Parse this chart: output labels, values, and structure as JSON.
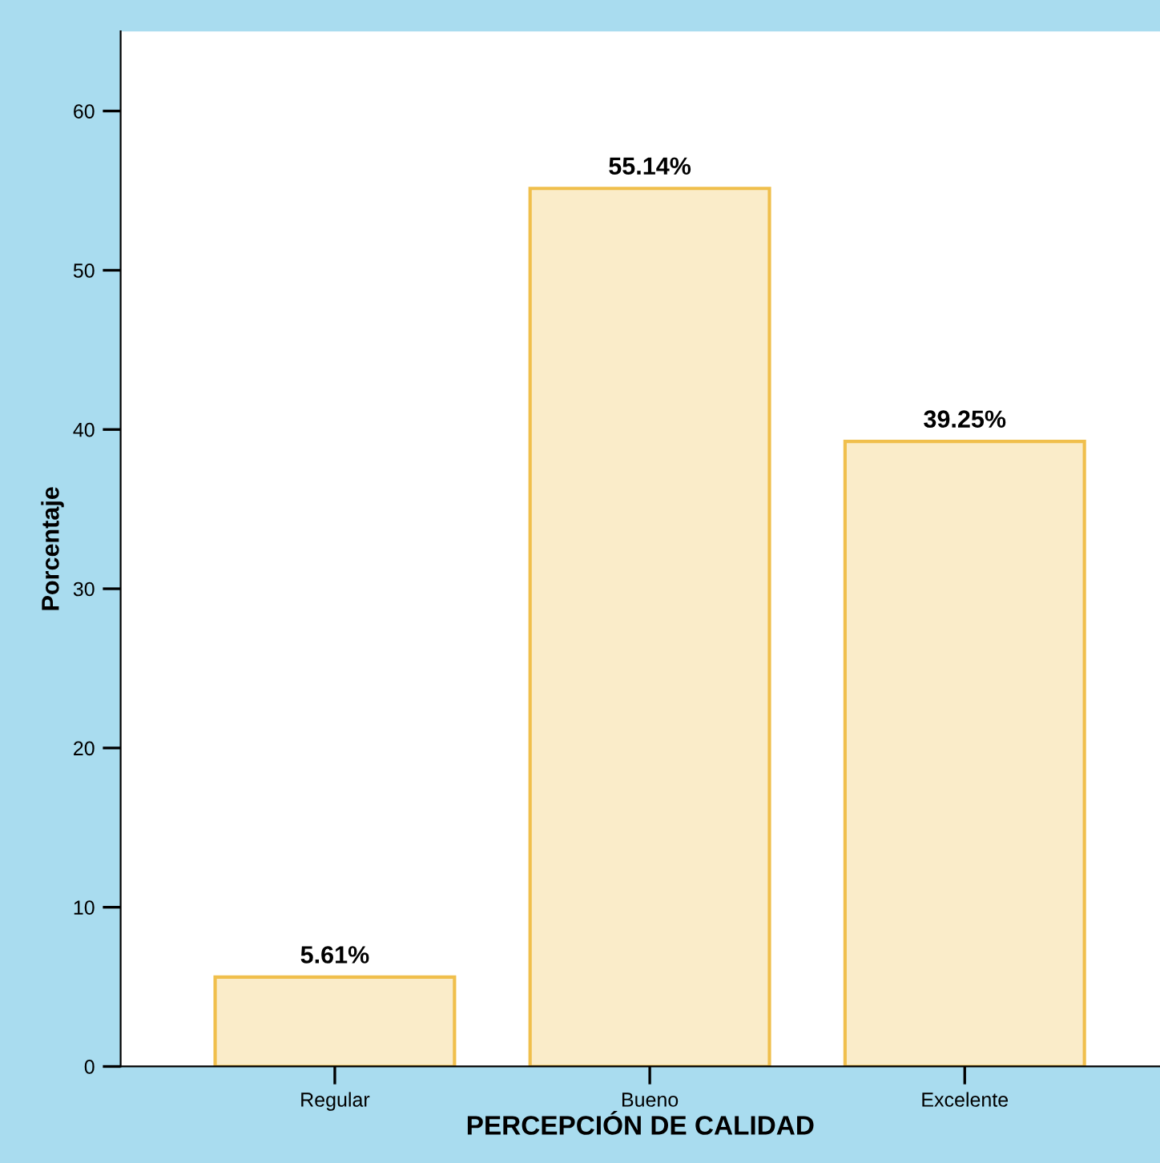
{
  "chart_data": {
    "type": "bar",
    "xlabel": "PERCEPCIÓN DE CALIDAD",
    "ylabel": "Porcentaje",
    "categories": [
      "Regular",
      "Bueno",
      "Excelente"
    ],
    "values": [
      5.61,
      55.14,
      39.25
    ],
    "value_labels": [
      "5.61%",
      "55.14%",
      "39.25%"
    ],
    "color": "#f0bf4c",
    "ylim": [
      0,
      65
    ],
    "yticks": [
      0,
      10,
      20,
      30,
      40,
      50,
      60
    ],
    "grid": false,
    "legend": false
  }
}
